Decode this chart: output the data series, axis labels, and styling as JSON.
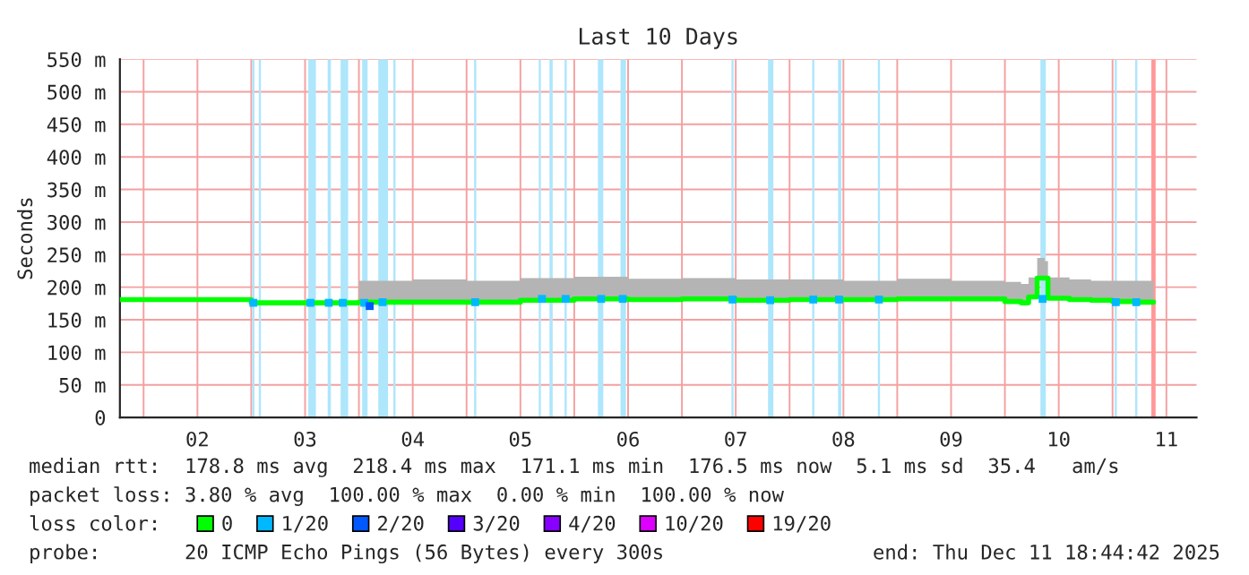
{
  "chart_data": {
    "type": "step",
    "title": "Last 10 Days",
    "ylabel": "Seconds",
    "xlim": [
      1.78,
      11.78
    ],
    "xticks": [
      {
        "value": 2,
        "label": null
      },
      {
        "value": 2.5,
        "label": "02"
      },
      {
        "value": 3,
        "label": null
      },
      {
        "value": 3.5,
        "label": "03"
      },
      {
        "value": 4,
        "label": null
      },
      {
        "value": 4.5,
        "label": "04"
      },
      {
        "value": 5,
        "label": null
      },
      {
        "value": 5.5,
        "label": "05"
      },
      {
        "value": 6,
        "label": null
      },
      {
        "value": 6.5,
        "label": "06"
      },
      {
        "value": 7,
        "label": null
      },
      {
        "value": 7.5,
        "label": "07"
      },
      {
        "value": 8,
        "label": null
      },
      {
        "value": 8.5,
        "label": "08"
      },
      {
        "value": 9,
        "label": null
      },
      {
        "value": 9.5,
        "label": "09"
      },
      {
        "value": 10,
        "label": null
      },
      {
        "value": 10.5,
        "label": "10"
      },
      {
        "value": 11,
        "label": null
      },
      {
        "value": 11.5,
        "label": "11"
      }
    ],
    "ylim": [
      0,
      550
    ],
    "yticks": [
      0,
      {
        "value": 50,
        "label": "50 m"
      },
      {
        "value": 100,
        "label": "100 m"
      },
      {
        "value": 150,
        "label": "150 m"
      },
      {
        "value": 200,
        "label": "200 m"
      },
      {
        "value": 250,
        "label": "250 m"
      },
      {
        "value": 300,
        "label": "300 m"
      },
      {
        "value": 350,
        "label": "350 m"
      },
      {
        "value": 400,
        "label": "400 m"
      },
      {
        "value": 450,
        "label": "450 m"
      },
      {
        "value": 500,
        "label": "500 m"
      },
      {
        "value": 550,
        "label": "550 m"
      }
    ],
    "grid": true,
    "legend": "bottom",
    "legend_title": "loss color:",
    "series": [
      {
        "name": "0",
        "color": "#00ff00",
        "x": [
          1.78,
          2.5,
          3.0,
          3.5,
          4.0,
          4.5,
          5.0,
          5.5,
          6.0,
          6.5,
          7.0,
          7.5,
          8.0,
          8.5,
          9.0,
          9.5,
          10.0,
          10.15,
          10.2,
          10.22,
          10.3,
          10.37,
          10.4,
          10.6,
          10.8,
          11.0,
          11.2,
          11.38
        ],
        "values": [
          181,
          181,
          176,
          176,
          177,
          177,
          177,
          180,
          182,
          181,
          182,
          180,
          181,
          181,
          182,
          182,
          178,
          176,
          176,
          185,
          214,
          214,
          183,
          181,
          180,
          178,
          177,
          177
        ],
        "lower": [
          null,
          null,
          null,
          null,
          177,
          177,
          177,
          180,
          182,
          181,
          182,
          180,
          181,
          181,
          182,
          182,
          178,
          176,
          176,
          185,
          214,
          214,
          183,
          181,
          180,
          178,
          177,
          177
        ],
        "upper": [
          null,
          null,
          null,
          null,
          210,
          212,
          210,
          214,
          216,
          213,
          214,
          212,
          212,
          210,
          213,
          210,
          208,
          205,
          205,
          215,
          245,
          240,
          215,
          212,
          210,
          210,
          210,
          210
        ]
      },
      {
        "name": "1/20",
        "color": "#00b8ff",
        "type": "scatter",
        "x": [
          3.02,
          3.55,
          3.72,
          3.85,
          4.05,
          4.22,
          5.08,
          5.7,
          5.92,
          6.25,
          6.45,
          7.47,
          7.82,
          8.22,
          8.46,
          8.83,
          10.35,
          11.03,
          11.22
        ],
        "values": [
          176,
          176,
          176,
          176,
          176,
          177,
          177,
          182,
          182,
          182,
          182,
          181,
          180,
          181,
          181,
          181,
          182,
          177,
          177
        ]
      },
      {
        "name": "2/20",
        "color": "#0059ff",
        "type": "scatter",
        "x": [
          4.1
        ],
        "values": [
          171
        ]
      },
      {
        "name": "3/20",
        "color": "#5500ff",
        "type": "scatter"
      },
      {
        "name": "4/20",
        "color": "#8800ff",
        "type": "scatter"
      },
      {
        "name": "10/20",
        "color": "#dd00ff",
        "type": "scatter"
      },
      {
        "name": "19/20",
        "color": "#ff0000",
        "type": "scatter"
      }
    ],
    "bands": [
      {
        "axis": "x",
        "from": 3.01,
        "to": 3.03,
        "color": "#aee6fb"
      },
      {
        "axis": "x",
        "from": 3.07,
        "to": 3.09,
        "color": "#aee6fb"
      },
      {
        "axis": "x",
        "from": 3.53,
        "to": 3.6,
        "color": "#aee6fb"
      },
      {
        "axis": "x",
        "from": 3.71,
        "to": 3.74,
        "color": "#aee6fb"
      },
      {
        "axis": "x",
        "from": 3.83,
        "to": 3.9,
        "color": "#aee6fb"
      },
      {
        "axis": "x",
        "from": 4.03,
        "to": 4.08,
        "color": "#aee6fb"
      },
      {
        "axis": "x",
        "from": 4.18,
        "to": 4.27,
        "color": "#aee6fb"
      },
      {
        "axis": "x",
        "from": 4.32,
        "to": 4.34,
        "color": "#aee6fb"
      },
      {
        "axis": "x",
        "from": 5.07,
        "to": 5.09,
        "color": "#aee6fb"
      },
      {
        "axis": "x",
        "from": 5.67,
        "to": 5.69,
        "color": "#aee6fb"
      },
      {
        "axis": "x",
        "from": 5.77,
        "to": 5.8,
        "color": "#aee6fb"
      },
      {
        "axis": "x",
        "from": 5.91,
        "to": 5.93,
        "color": "#aee6fb"
      },
      {
        "axis": "x",
        "from": 6.22,
        "to": 6.27,
        "color": "#aee6fb"
      },
      {
        "axis": "x",
        "from": 6.43,
        "to": 6.48,
        "color": "#aee6fb"
      },
      {
        "axis": "x",
        "from": 7.46,
        "to": 7.48,
        "color": "#aee6fb"
      },
      {
        "axis": "x",
        "from": 7.8,
        "to": 7.85,
        "color": "#aee6fb"
      },
      {
        "axis": "x",
        "from": 8.21,
        "to": 8.23,
        "color": "#aee6fb"
      },
      {
        "axis": "x",
        "from": 8.45,
        "to": 8.48,
        "color": "#aee6fb"
      },
      {
        "axis": "x",
        "from": 8.82,
        "to": 8.84,
        "color": "#aee6fb"
      },
      {
        "axis": "x",
        "from": 10.33,
        "to": 10.38,
        "color": "#aee6fb"
      },
      {
        "axis": "x",
        "from": 11.02,
        "to": 11.04,
        "color": "#aee6fb"
      },
      {
        "axis": "x",
        "from": 11.21,
        "to": 11.23,
        "color": "#aee6fb"
      },
      {
        "axis": "x",
        "from": 11.36,
        "to": 11.4,
        "color": "#ff9999"
      }
    ],
    "annotations": [
      "median rtt:  178.8 ms avg  218.4 ms max  171.1 ms min  176.5 ms now  5.1 ms sd  35.4   am/s",
      "packet loss: 3.80 % avg  100.00 % max  0.00 % min  100.00 % now",
      "probe:       20 ICMP Echo Pings (56 Bytes) every 300s",
      "end: Thu Dec 11 18:44:42 2025"
    ]
  }
}
